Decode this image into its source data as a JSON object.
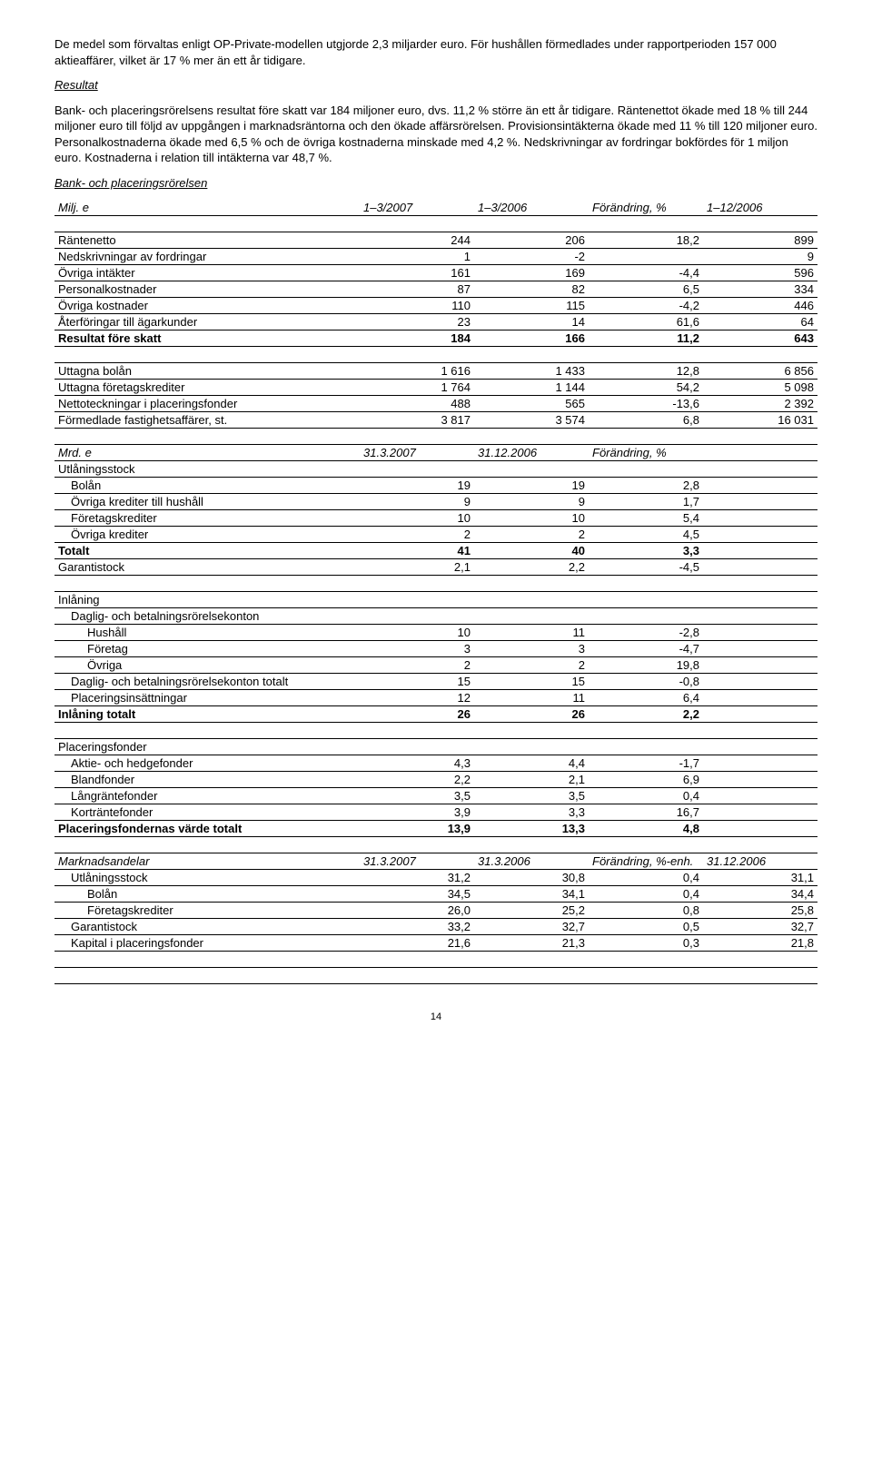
{
  "paragraphs": {
    "p1": "De medel som förvaltas enligt OP-Private-modellen utgjorde 2,3 miljarder euro. För hushållen förmedlades under rapportperioden 157 000 aktieaffärer, vilket är 17 % mer än ett år tidigare.",
    "resultat_heading": "Resultat",
    "p2": "Bank- och placeringsrörelsens resultat före skatt var 184 miljoner euro, dvs. 11,2 % större än ett år tidigare. Räntenettot ökade med 18 % till 244 miljoner euro till följd av uppgången i marknadsräntorna och den ökade affärsrörelsen. Provisionsintäkterna ökade med 11 % till 120 miljoner euro. Personalkostnaderna ökade med 6,5 % och de övriga kostnaderna minskade med 4,2 %. Nedskrivningar av fordringar bokfördes för 1 miljon euro. Kostnaderna i relation till intäkterna var 48,7 %.",
    "section_title": "Bank- och placeringsrörelsen"
  },
  "table1": {
    "header": {
      "c0": "Milj. e",
      "c1": "1–3/2007",
      "c2": "1–3/2006",
      "c3": "Förändring, %",
      "c4": "1–12/2006"
    },
    "rows": [
      {
        "label": "Räntenetto",
        "c1": "244",
        "c2": "206",
        "c3": "18,2",
        "c4": "899"
      },
      {
        "label": "Nedskrivningar av fordringar",
        "c1": "1",
        "c2": "-2",
        "c3": "",
        "c4": "9"
      },
      {
        "label": "Övriga intäkter",
        "c1": "161",
        "c2": "169",
        "c3": "-4,4",
        "c4": "596"
      },
      {
        "label": "Personalkostnader",
        "c1": "87",
        "c2": "82",
        "c3": "6,5",
        "c4": "334"
      },
      {
        "label": "Övriga kostnader",
        "c1": "110",
        "c2": "115",
        "c3": "-4,2",
        "c4": "446"
      },
      {
        "label": "Återföringar till ägarkunder",
        "c1": "23",
        "c2": "14",
        "c3": "61,6",
        "c4": "64"
      }
    ],
    "total": {
      "label": "Resultat före skatt",
      "c1": "184",
      "c2": "166",
      "c3": "11,2",
      "c4": "643"
    }
  },
  "table2": {
    "rows": [
      {
        "label": "Uttagna bolån",
        "c1": "1 616",
        "c2": "1 433",
        "c3": "12,8",
        "c4": "6 856"
      },
      {
        "label": "Uttagna företagskrediter",
        "c1": "1 764",
        "c2": "1 144",
        "c3": "54,2",
        "c4": "5 098"
      },
      {
        "label": "Nettoteckningar i placeringsfonder",
        "c1": "488",
        "c2": "565",
        "c3": "-13,6",
        "c4": "2 392"
      },
      {
        "label": "Förmedlade fastighetsaffärer, st.",
        "c1": "3 817",
        "c2": "3 574",
        "c3": "6,8",
        "c4": "16 031"
      }
    ]
  },
  "table3": {
    "header": {
      "c0": "Mrd. e",
      "c1": "31.3.2007",
      "c2": "31.12.2006",
      "c3": "Förändring, %"
    },
    "utlaning_label": "Utlåningsstock",
    "utlaning_rows": [
      {
        "label": "Bolån",
        "c1": "19",
        "c2": "19",
        "c3": "2,8"
      },
      {
        "label": "Övriga krediter till hushåll",
        "c1": "9",
        "c2": "9",
        "c3": "1,7"
      },
      {
        "label": "Företagskrediter",
        "c1": "10",
        "c2": "10",
        "c3": "5,4"
      },
      {
        "label": "Övriga krediter",
        "c1": "2",
        "c2": "2",
        "c3": "4,5"
      }
    ],
    "totalt": {
      "label": "Totalt",
      "c1": "41",
      "c2": "40",
      "c3": "3,3"
    },
    "garantistock": {
      "label": "Garantistock",
      "c1": "2,1",
      "c2": "2,2",
      "c3": "-4,5"
    },
    "inlaning_label": "Inlåning",
    "daglig_label": "Daglig- och betalningsrörelsekonton",
    "daglig_rows": [
      {
        "label": "Hushåll",
        "c1": "10",
        "c2": "11",
        "c3": "-2,8"
      },
      {
        "label": "Företag",
        "c1": "3",
        "c2": "3",
        "c3": "-4,7"
      },
      {
        "label": "Övriga",
        "c1": "2",
        "c2": "2",
        "c3": "19,8"
      }
    ],
    "daglig_totalt": {
      "label": "Daglig- och betalningsrörelsekonton totalt",
      "c1": "15",
      "c2": "15",
      "c3": "-0,8"
    },
    "placeringsins": {
      "label": "Placeringsinsättningar",
      "c1": "12",
      "c2": "11",
      "c3": "6,4"
    },
    "inlaning_totalt": {
      "label": "Inlåning totalt",
      "c1": "26",
      "c2": "26",
      "c3": "2,2"
    },
    "fonder_label": "Placeringsfonder",
    "fonder_rows": [
      {
        "label": "Aktie- och hedgefonder",
        "c1": "4,3",
        "c2": "4,4",
        "c3": "-1,7"
      },
      {
        "label": "Blandfonder",
        "c1": "2,2",
        "c2": "2,1",
        "c3": "6,9"
      },
      {
        "label": "Långräntefonder",
        "c1": "3,5",
        "c2": "3,5",
        "c3": "0,4"
      },
      {
        "label": "Korträntefonder",
        "c1": "3,9",
        "c2": "3,3",
        "c3": "16,7"
      }
    ],
    "fonder_totalt": {
      "label": "Placeringsfondernas värde totalt",
      "c1": "13,9",
      "c2": "13,3",
      "c3": "4,8"
    }
  },
  "table4": {
    "header": {
      "c0": "Marknadsandelar",
      "c1": "31.3.2007",
      "c2": "31.3.2006",
      "c3": "Förändring, %-enh.",
      "c4": "31.12.2006"
    },
    "rows": [
      {
        "label": "Utlåningsstock",
        "c1": "31,2",
        "c2": "30,8",
        "c3": "0,4",
        "c4": "31,1"
      },
      {
        "label": "Bolån",
        "indent": true,
        "c1": "34,5",
        "c2": "34,1",
        "c3": "0,4",
        "c4": "34,4"
      },
      {
        "label": "Företagskrediter",
        "indent": true,
        "c1": "26,0",
        "c2": "25,2",
        "c3": "0,8",
        "c4": "25,8"
      },
      {
        "label": "Garantistock",
        "c1": "33,2",
        "c2": "32,7",
        "c3": "0,5",
        "c4": "32,7"
      },
      {
        "label": "Kapital i placeringsfonder",
        "c1": "21,6",
        "c2": "21,3",
        "c3": "0,3",
        "c4": "21,8"
      }
    ]
  },
  "pagenum": "14"
}
